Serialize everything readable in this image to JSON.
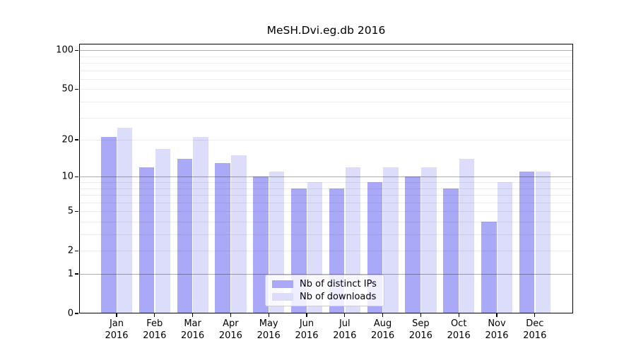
{
  "chart_data": {
    "type": "bar",
    "title": "MeSH.Dvi.eg.db 2016",
    "categories": [
      "Jan",
      "Feb",
      "Mar",
      "Apr",
      "May",
      "Jun",
      "Jul",
      "Aug",
      "Sep",
      "Oct",
      "Nov",
      "Dec"
    ],
    "x_year": "2016",
    "series": [
      {
        "name": "Nb of distinct IPs",
        "color": "#a9a9f8",
        "values": [
          21,
          12,
          14,
          13,
          10,
          8,
          8,
          9,
          10,
          8,
          4,
          11
        ]
      },
      {
        "name": "Nb of downloads",
        "color": "#dcdcfb",
        "values": [
          25,
          17,
          21,
          15,
          11,
          9,
          12,
          12,
          12,
          14,
          9,
          11
        ]
      }
    ],
    "y_ticks": [
      0,
      1,
      2,
      5,
      10,
      20,
      50,
      100
    ],
    "y_minor_gridlines": [
      2,
      3,
      4,
      5,
      6,
      7,
      8,
      9,
      20,
      30,
      40,
      50,
      60,
      70,
      80,
      90
    ],
    "y_major_gridlines": [
      1,
      10,
      100
    ],
    "y_scale": "log10(1+x)",
    "ylim": [
      0,
      112
    ],
    "grid": "horizontal",
    "legend_position": "bottom-center",
    "frame_color": "#000000",
    "background_color": "#ffffff"
  }
}
